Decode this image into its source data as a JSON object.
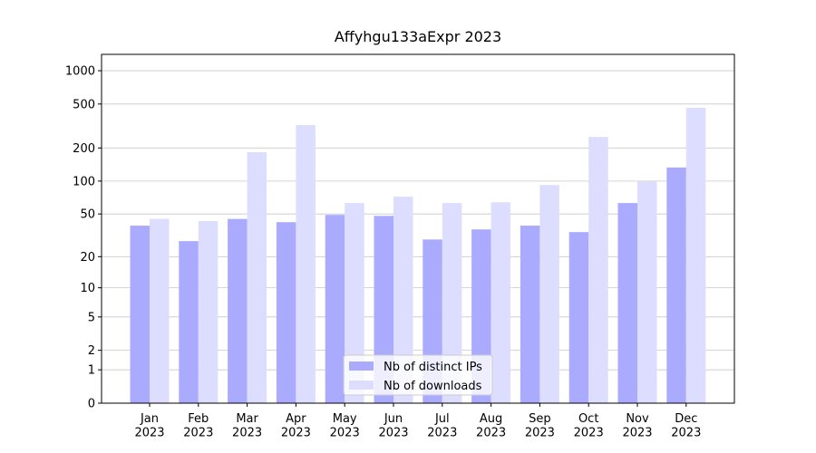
{
  "chart_data": {
    "type": "bar",
    "title": "Affyhgu133aExpr 2023",
    "categories": [
      "Jan\n2023",
      "Feb\n2023",
      "Mar\n2023",
      "Apr\n2023",
      "May\n2023",
      "Jun\n2023",
      "Jul\n2023",
      "Aug\n2023",
      "Sep\n2023",
      "Oct\n2023",
      "Nov\n2023",
      "Dec\n2023"
    ],
    "series": [
      {
        "name": "Nb of distinct IPs",
        "color": "#aaaaff",
        "values": [
          39,
          28,
          45,
          42,
          49,
          48,
          29,
          36,
          39,
          34,
          63,
          133
        ]
      },
      {
        "name": "Nb of downloads",
        "color": "#ddddff",
        "values": [
          45,
          43,
          183,
          323,
          63,
          72,
          63,
          64,
          92,
          252,
          99,
          462
        ]
      }
    ],
    "yscale": "log1p",
    "ylim": [
      0,
      1405
    ],
    "yticks": [
      0,
      1,
      2,
      5,
      10,
      20,
      50,
      100,
      200,
      500,
      1000
    ],
    "grid": true,
    "legend": "lower center"
  }
}
